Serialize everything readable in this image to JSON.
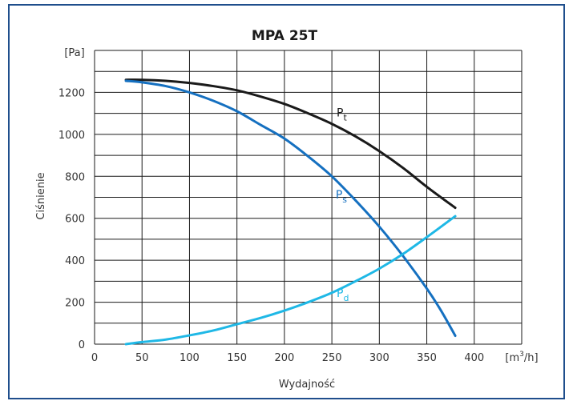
{
  "chart_data": {
    "type": "line",
    "title": "MPA 25T",
    "xlabel": "Wydajność",
    "ylabel": "Ciśnienie",
    "x_unit": {
      "prefix": "[m",
      "sup": "3",
      "suffix": "/h]"
    },
    "y_unit": "[Pa]",
    "xlim": [
      0,
      450
    ],
    "ylim": [
      0,
      1400
    ],
    "x_ticks": [
      0,
      50,
      100,
      150,
      200,
      250,
      300,
      350,
      400
    ],
    "y_ticks": [
      0,
      200,
      400,
      600,
      800,
      1000,
      1200
    ],
    "grid": true,
    "frame_color": "#1f4e8c",
    "series": [
      {
        "name": "Pt",
        "label_main": "P",
        "label_sub": "t",
        "color": "#1a1a1a",
        "label_at": [
          255,
          1085
        ],
        "x": [
          33,
          50,
          75,
          100,
          125,
          150,
          175,
          200,
          225,
          250,
          275,
          300,
          325,
          350,
          380
        ],
        "y": [
          1260,
          1260,
          1255,
          1245,
          1230,
          1210,
          1180,
          1145,
          1100,
          1050,
          990,
          920,
          840,
          750,
          650
        ]
      },
      {
        "name": "Ps",
        "label_main": "P",
        "label_sub": "s",
        "color": "#1570c0",
        "label_at": [
          254,
          695
        ],
        "x": [
          33,
          50,
          75,
          100,
          125,
          150,
          175,
          200,
          225,
          250,
          275,
          300,
          325,
          350,
          365,
          380
        ],
        "y": [
          1255,
          1248,
          1230,
          1200,
          1160,
          1110,
          1045,
          980,
          895,
          800,
          685,
          560,
          420,
          265,
          160,
          40
        ]
      },
      {
        "name": "Pd",
        "label_main": "P",
        "label_sub": "d",
        "color": "#1fb8e6",
        "label_at": [
          255,
          225
        ],
        "x": [
          33,
          50,
          75,
          100,
          125,
          150,
          175,
          200,
          225,
          250,
          275,
          300,
          325,
          350,
          380
        ],
        "y": [
          0,
          10,
          22,
          42,
          65,
          95,
          125,
          160,
          200,
          245,
          300,
          360,
          430,
          510,
          610
        ]
      }
    ]
  }
}
